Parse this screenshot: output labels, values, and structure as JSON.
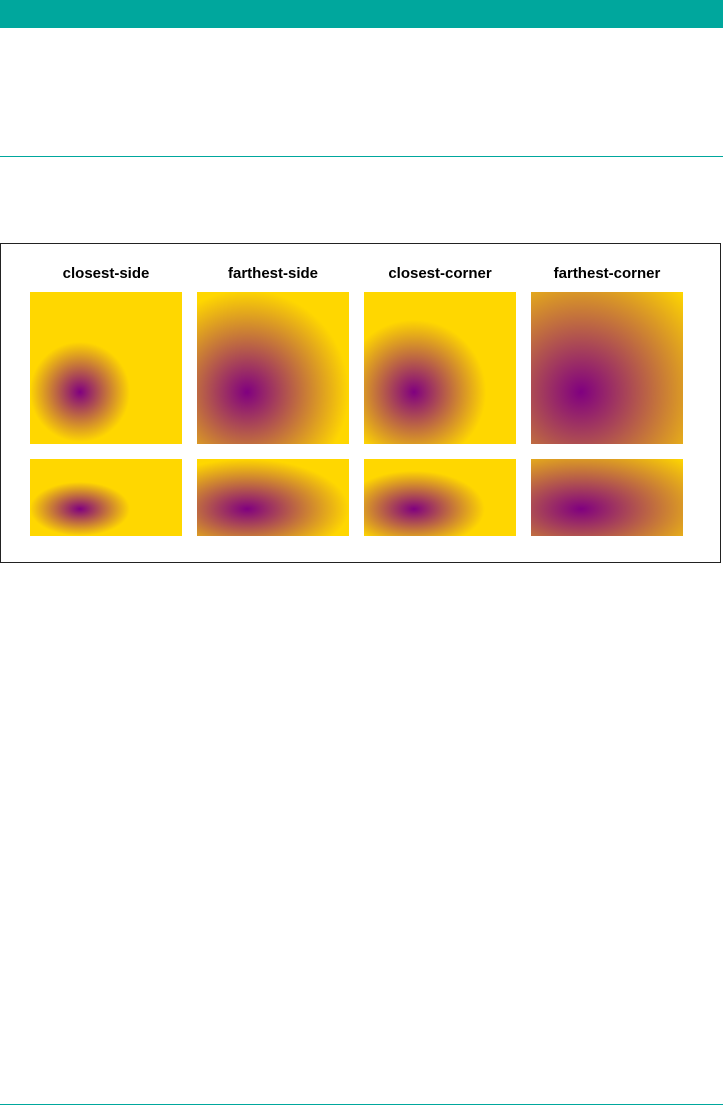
{
  "figure": {
    "columns": [
      {
        "label": "closest-side"
      },
      {
        "label": "farthest-side"
      },
      {
        "label": "closest-corner"
      },
      {
        "label": "farthest-corner"
      }
    ]
  },
  "colors": {
    "header_bar": "#00a79d",
    "gradient_center": "#800080",
    "gradient_outer": "#ffd700"
  }
}
